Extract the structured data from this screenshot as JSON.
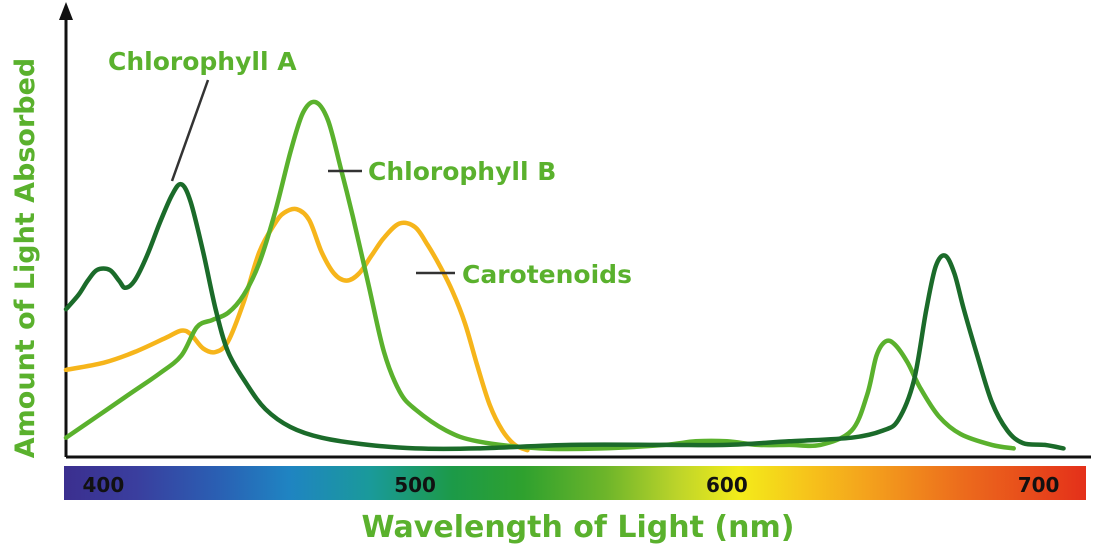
{
  "chart_data": {
    "type": "line",
    "title": "",
    "xlabel": "Wavelength of Light (nm)",
    "ylabel": "Amount of Light Absorbed",
    "xlim": [
      388,
      712
    ],
    "ylim": [
      0,
      100
    ],
    "x_ticks": [
      400,
      500,
      600,
      700
    ],
    "grid": false,
    "legend": "annotations",
    "spectrum_bar": true,
    "series": [
      {
        "name": "Chlorophyll A",
        "color": "#1b6b2a",
        "points": [
          [
            388,
            40
          ],
          [
            392,
            44
          ],
          [
            395,
            48
          ],
          [
            398,
            51
          ],
          [
            402,
            51
          ],
          [
            405,
            48
          ],
          [
            407,
            46
          ],
          [
            410,
            48
          ],
          [
            414,
            55
          ],
          [
            418,
            64
          ],
          [
            422,
            72
          ],
          [
            425,
            75
          ],
          [
            428,
            70
          ],
          [
            432,
            56
          ],
          [
            436,
            40
          ],
          [
            440,
            28
          ],
          [
            446,
            19
          ],
          [
            452,
            12
          ],
          [
            460,
            7
          ],
          [
            470,
            4
          ],
          [
            485,
            2
          ],
          [
            500,
            1
          ],
          [
            520,
            1
          ],
          [
            550,
            2
          ],
          [
            580,
            2
          ],
          [
            600,
            2
          ],
          [
            620,
            3
          ],
          [
            640,
            4
          ],
          [
            650,
            6
          ],
          [
            655,
            9
          ],
          [
            660,
            20
          ],
          [
            664,
            40
          ],
          [
            667,
            52
          ],
          [
            670,
            55
          ],
          [
            673,
            50
          ],
          [
            676,
            40
          ],
          [
            680,
            28
          ],
          [
            685,
            14
          ],
          [
            690,
            6
          ],
          [
            695,
            2.5
          ],
          [
            702,
            2
          ],
          [
            708,
            1
          ]
        ]
      },
      {
        "name": "Chlorophyll B",
        "color": "#5ab12d",
        "points": [
          [
            388,
            4
          ],
          [
            398,
            10
          ],
          [
            408,
            16
          ],
          [
            418,
            22
          ],
          [
            425,
            27
          ],
          [
            430,
            35
          ],
          [
            435,
            37
          ],
          [
            440,
            39
          ],
          [
            445,
            44
          ],
          [
            450,
            53
          ],
          [
            455,
            67
          ],
          [
            460,
            84
          ],
          [
            464,
            95
          ],
          [
            468,
            98
          ],
          [
            472,
            93
          ],
          [
            476,
            80
          ],
          [
            480,
            66
          ],
          [
            485,
            47
          ],
          [
            490,
            28
          ],
          [
            495,
            17
          ],
          [
            500,
            12
          ],
          [
            510,
            6
          ],
          [
            520,
            3
          ],
          [
            540,
            1
          ],
          [
            560,
            1
          ],
          [
            580,
            2
          ],
          [
            590,
            3
          ],
          [
            600,
            3
          ],
          [
            610,
            2
          ],
          [
            620,
            2
          ],
          [
            630,
            2
          ],
          [
            640,
            6
          ],
          [
            645,
            16
          ],
          [
            648,
            27
          ],
          [
            651,
            31
          ],
          [
            654,
            30
          ],
          [
            658,
            25
          ],
          [
            662,
            18
          ],
          [
            668,
            10
          ],
          [
            675,
            5
          ],
          [
            685,
            2
          ],
          [
            692,
            1
          ]
        ]
      },
      {
        "name": "Carotenoids",
        "color": "#f6b51b",
        "points": [
          [
            388,
            23
          ],
          [
            400,
            25
          ],
          [
            410,
            28
          ],
          [
            420,
            32
          ],
          [
            425,
            34
          ],
          [
            428,
            33
          ],
          [
            432,
            29
          ],
          [
            436,
            28
          ],
          [
            440,
            31
          ],
          [
            445,
            42
          ],
          [
            450,
            56
          ],
          [
            455,
            64
          ],
          [
            458,
            67
          ],
          [
            462,
            68
          ],
          [
            466,
            65
          ],
          [
            470,
            56
          ],
          [
            474,
            50
          ],
          [
            478,
            48
          ],
          [
            482,
            50
          ],
          [
            486,
            55
          ],
          [
            490,
            60
          ],
          [
            495,
            64
          ],
          [
            500,
            63
          ],
          [
            504,
            58
          ],
          [
            508,
            52
          ],
          [
            512,
            45
          ],
          [
            516,
            36
          ],
          [
            520,
            24
          ],
          [
            524,
            13
          ],
          [
            528,
            6
          ],
          [
            532,
            2
          ],
          [
            536,
            0.5
          ]
        ]
      }
    ],
    "annotations": [
      {
        "text": "Chlorophyll A",
        "series": 0
      },
      {
        "text": "Chlorophyll B",
        "series": 1
      },
      {
        "text": "Carotenoids",
        "series": 2
      }
    ],
    "colors": {
      "label_green": "#5ab12d",
      "axis": "#111111",
      "leader": "#333333"
    }
  }
}
